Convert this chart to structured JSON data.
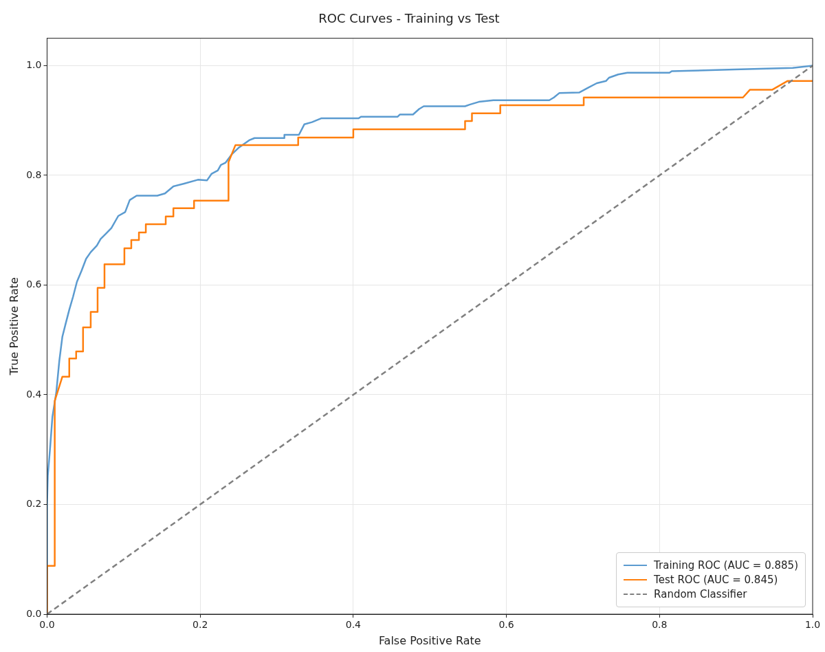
{
  "chart_data": {
    "type": "line",
    "title": "ROC Curves - Training vs Test",
    "xlabel": "False Positive Rate",
    "ylabel": "True Positive Rate",
    "xlim": [
      0,
      1
    ],
    "ylim": [
      0,
      1.05
    ],
    "xticks": [
      {
        "value": 0,
        "label": "0.0"
      },
      0.2,
      0.4,
      0.6,
      0.8,
      {
        "value": 1,
        "label": "1.0"
      }
    ],
    "yticks": [
      {
        "value": 0,
        "label": "0.0"
      },
      0.2,
      0.4,
      0.6,
      0.8,
      {
        "value": 1,
        "label": "1.0"
      }
    ],
    "grid": true,
    "legend": "bottom right",
    "marker": "none",
    "series": [
      {
        "name": "Training ROC (AUC = 0.885)",
        "color": "#5b9bd0",
        "line_style": "solid",
        "x": [
          0,
          0,
          0.001,
          0.004,
          0.007,
          0.012,
          0.016,
          0.02,
          0.024,
          0.029,
          0.034,
          0.039,
          0.045,
          0.051,
          0.057,
          0.065,
          0.07,
          0.077,
          0.084,
          0.093,
          0.102,
          0.108,
          0.117,
          0.144,
          0.154,
          0.165,
          0.179,
          0.197,
          0.209,
          0.215,
          0.223,
          0.227,
          0.233,
          0.241,
          0.25,
          0.264,
          0.271,
          0.31,
          0.31,
          0.329,
          0.336,
          0.346,
          0.358,
          0.407,
          0.41,
          0.458,
          0.461,
          0.478,
          0.486,
          0.492,
          0.546,
          0.552,
          0.564,
          0.583,
          0.656,
          0.662,
          0.669,
          0.695,
          0.707,
          0.718,
          0.73,
          0.734,
          0.746,
          0.758,
          0.813,
          0.816,
          0.898,
          0.974,
          1
        ],
        "values": [
          0,
          0.2,
          0.253,
          0.304,
          0.36,
          0.404,
          0.462,
          0.506,
          0.528,
          0.555,
          0.579,
          0.606,
          0.626,
          0.648,
          0.66,
          0.672,
          0.684,
          0.694,
          0.704,
          0.726,
          0.733,
          0.755,
          0.763,
          0.763,
          0.767,
          0.78,
          0.785,
          0.792,
          0.791,
          0.803,
          0.809,
          0.819,
          0.823,
          0.838,
          0.85,
          0.864,
          0.868,
          0.868,
          0.874,
          0.874,
          0.893,
          0.897,
          0.904,
          0.904,
          0.907,
          0.907,
          0.911,
          0.911,
          0.921,
          0.926,
          0.926,
          0.929,
          0.934,
          0.937,
          0.937,
          0.942,
          0.95,
          0.951,
          0.96,
          0.968,
          0.972,
          0.978,
          0.984,
          0.987,
          0.987,
          0.99,
          0.993,
          0.996,
          1
        ]
      },
      {
        "name": "Test ROC (AUC = 0.845)",
        "color": "#ff7f0e",
        "line_style": "solid",
        "x": [
          0,
          0,
          0.01,
          0.01,
          0.02,
          0.029,
          0.029,
          0.038,
          0.038,
          0.047,
          0.047,
          0.057,
          0.057,
          0.066,
          0.066,
          0.075,
          0.075,
          0.101,
          0.101,
          0.11,
          0.11,
          0.12,
          0.12,
          0.129,
          0.129,
          0.155,
          0.155,
          0.165,
          0.165,
          0.192,
          0.192,
          0.237,
          0.237,
          0.246,
          0.328,
          0.328,
          0.4,
          0.4,
          0.546,
          0.546,
          0.555,
          0.555,
          0.592,
          0.592,
          0.701,
          0.701,
          0.909,
          0.918,
          0.947,
          0.967,
          1
        ],
        "values": [
          0,
          0.088,
          0.088,
          0.389,
          0.433,
          0.433,
          0.466,
          0.466,
          0.479,
          0.479,
          0.523,
          0.523,
          0.551,
          0.551,
          0.595,
          0.595,
          0.638,
          0.638,
          0.667,
          0.667,
          0.682,
          0.682,
          0.696,
          0.696,
          0.711,
          0.711,
          0.725,
          0.725,
          0.74,
          0.74,
          0.754,
          0.754,
          0.824,
          0.855,
          0.855,
          0.869,
          0.869,
          0.884,
          0.884,
          0.899,
          0.899,
          0.913,
          0.913,
          0.928,
          0.928,
          0.942,
          0.942,
          0.956,
          0.956,
          0.972,
          0.972
        ]
      },
      {
        "name": "Random Classifier",
        "color": "#808080",
        "line_style": "dashed",
        "x": [
          0,
          1
        ],
        "values": [
          0,
          1
        ]
      }
    ]
  }
}
